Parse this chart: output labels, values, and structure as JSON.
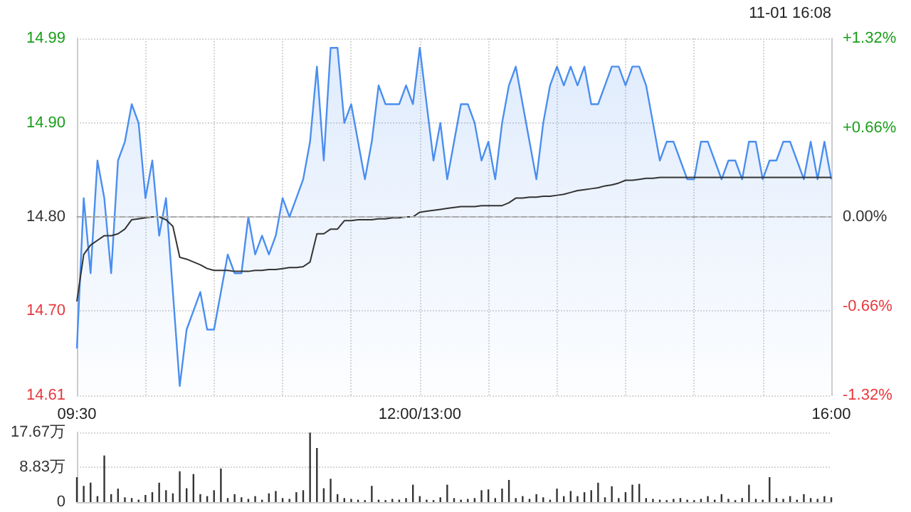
{
  "chart_data": [
    {
      "type": "area",
      "annotations": [
        "11-01 16:08"
      ],
      "categories": [
        "09:30",
        null,
        null,
        null,
        null,
        null,
        null,
        null,
        null,
        null,
        null,
        null,
        null,
        null,
        null,
        null,
        null,
        null,
        null,
        null,
        null,
        null,
        null,
        null,
        null,
        null,
        null,
        null,
        null,
        null,
        null,
        null,
        null,
        null,
        null,
        null,
        null,
        null,
        null,
        null,
        null,
        null,
        null,
        null,
        null,
        null,
        null,
        null,
        null,
        null,
        "12:00/13:00",
        null,
        null,
        null,
        null,
        null,
        null,
        null,
        null,
        null,
        null,
        null,
        null,
        null,
        null,
        null,
        null,
        null,
        null,
        null,
        null,
        null,
        null,
        null,
        null,
        null,
        null,
        null,
        null,
        null,
        null,
        null,
        null,
        null,
        null,
        null,
        null,
        null,
        null,
        null,
        null,
        null,
        null,
        null,
        null,
        null,
        null,
        null,
        null,
        null,
        null,
        null,
        null,
        null,
        null,
        null,
        null,
        null,
        null,
        null,
        "16:00"
      ],
      "ylim": [
        14.61,
        14.99
      ],
      "yticks": [
        {
          "value": 14.61,
          "label": "14.61"
        },
        {
          "value": 14.7,
          "label": "14.70"
        },
        {
          "value": 14.8,
          "label": "14.80"
        },
        {
          "value": 14.9,
          "label": "14.90"
        },
        {
          "value": 14.99,
          "label": "14.99"
        }
      ],
      "y2lim": [
        -1.32,
        1.32
      ],
      "y2ticks": [
        {
          "value": -1.32,
          "label": "-1.32%"
        },
        {
          "value": -0.66,
          "label": "-0.66%"
        },
        {
          "value": 0,
          "label": "0.00%"
        },
        {
          "value": 0.66,
          "label": "+0.66%"
        },
        {
          "value": 1.32,
          "label": "+1.32%"
        }
      ],
      "grid": true,
      "ref_lines": [
        {
          "axis": "y",
          "value": 14.8,
          "color": "#aaaaaa",
          "line_style": "dashed"
        }
      ],
      "series": [
        {
          "color": "#4a8ef0",
          "values": [
            14.66,
            14.82,
            14.74,
            14.86,
            14.82,
            14.74,
            14.86,
            14.88,
            14.92,
            14.9,
            14.82,
            14.86,
            14.78,
            14.82,
            14.72,
            14.62,
            14.68,
            14.7,
            14.72,
            14.68,
            14.68,
            14.72,
            14.76,
            14.74,
            14.74,
            14.8,
            14.76,
            14.78,
            14.76,
            14.78,
            14.82,
            14.8,
            14.82,
            14.84,
            14.88,
            14.96,
            14.86,
            14.98,
            14.98,
            14.9,
            14.92,
            14.88,
            14.84,
            14.88,
            14.94,
            14.92,
            14.92,
            14.92,
            14.94,
            14.92,
            14.98,
            14.92,
            14.86,
            14.9,
            14.84,
            14.88,
            14.92,
            14.92,
            14.9,
            14.86,
            14.88,
            14.84,
            14.9,
            14.94,
            14.96,
            14.92,
            14.88,
            14.84,
            14.9,
            14.94,
            14.96,
            14.94,
            14.96,
            14.94,
            14.96,
            14.92,
            14.92,
            14.94,
            14.96,
            14.96,
            14.94,
            14.96,
            14.96,
            14.94,
            14.9,
            14.86,
            14.88,
            14.88,
            14.86,
            14.84,
            14.84,
            14.88,
            14.88,
            14.86,
            14.84,
            14.86,
            14.86,
            14.84,
            14.88,
            14.88,
            14.84,
            14.86,
            14.86,
            14.88,
            14.88,
            14.86,
            14.84,
            14.88,
            14.84,
            14.88,
            14.84
          ]
        },
        {
          "type": "line",
          "color": "#333333",
          "values": [
            14.71,
            14.76,
            14.77,
            14.775,
            14.78,
            14.78,
            14.782,
            14.787,
            14.797,
            14.798,
            14.799,
            14.8,
            14.8,
            14.797,
            14.79,
            14.757,
            14.755,
            14.752,
            14.749,
            14.745,
            14.743,
            14.743,
            14.743,
            14.742,
            14.742,
            14.742,
            14.743,
            14.743,
            14.744,
            14.744,
            14.745,
            14.746,
            14.746,
            14.747,
            14.752,
            14.782,
            14.782,
            14.787,
            14.787,
            14.796,
            14.796,
            14.797,
            14.797,
            14.797,
            14.798,
            14.798,
            14.799,
            14.799,
            14.8,
            14.8,
            14.805,
            14.806,
            14.807,
            14.808,
            14.809,
            14.81,
            14.811,
            14.811,
            14.811,
            14.812,
            14.812,
            14.812,
            14.812,
            14.815,
            14.82,
            14.82,
            14.821,
            14.821,
            14.822,
            14.822,
            14.823,
            14.824,
            14.826,
            14.828,
            14.829,
            14.83,
            14.831,
            14.833,
            14.834,
            14.836,
            14.839,
            14.839,
            14.84,
            14.841,
            14.841,
            14.842,
            14.842,
            14.842,
            14.842,
            14.842,
            14.842,
            14.842,
            14.842,
            14.842,
            14.842,
            14.842,
            14.842,
            14.842,
            14.842,
            14.842,
            14.842,
            14.842,
            14.842,
            14.842,
            14.842,
            14.842,
            14.842,
            14.842,
            14.842,
            14.842,
            14.842
          ]
        }
      ]
    },
    {
      "type": "bar",
      "tick_labels": "y",
      "grid": "y",
      "categories": [
        null,
        null,
        null,
        null,
        null,
        null,
        null,
        null,
        null,
        null,
        null,
        null,
        null,
        null,
        null,
        null,
        null,
        null,
        null,
        null,
        null,
        null,
        null,
        null,
        null,
        null,
        null,
        null,
        null,
        null,
        null,
        null,
        null,
        null,
        null,
        null,
        null,
        null,
        null,
        null,
        null,
        null,
        null,
        null,
        null,
        null,
        null,
        null,
        null,
        null,
        null,
        null,
        null,
        null,
        null,
        null,
        null,
        null,
        null,
        null,
        null,
        null,
        null,
        null,
        null,
        null,
        null,
        null,
        null,
        null,
        null,
        null,
        null,
        null,
        null,
        null,
        null,
        null,
        null,
        null,
        null,
        null,
        null,
        null,
        null,
        null,
        null,
        null,
        null,
        null,
        null,
        null,
        null,
        null,
        null,
        null,
        null,
        null,
        null,
        null,
        null,
        null,
        null,
        null,
        null,
        null,
        null,
        null,
        null,
        null,
        null
      ],
      "ylim": [
        0,
        17.67
      ],
      "yticks": [
        {
          "value": 0,
          "label": "0"
        },
        {
          "value": 8.83,
          "label": "8.83万"
        },
        {
          "value": 17.67,
          "label": "17.67万"
        }
      ],
      "series": [
        {
          "color": "#333333",
          "values": [
            6.3,
            4.1,
            4.9,
            1.5,
            11.8,
            2.0,
            3.4,
            1.2,
            1.0,
            0.6,
            1.8,
            2.5,
            4.9,
            3.0,
            2.2,
            7.8,
            3.5,
            7.1,
            2.0,
            1.5,
            3.0,
            8.5,
            1.0,
            2.0,
            1.2,
            0.8,
            1.5,
            0.6,
            2.2,
            2.8,
            1.0,
            0.8,
            2.5,
            3.0,
            17.6,
            13.7,
            3.5,
            5.9,
            2.0,
            1.0,
            0.8,
            0.6,
            0.5,
            4.1,
            0.6,
            0.5,
            0.8,
            0.6,
            1.0,
            4.4,
            1.5,
            0.6,
            0.5,
            1.2,
            4.4,
            1.0,
            0.6,
            0.8,
            1.0,
            3.0,
            3.2,
            1.0,
            3.4,
            5.6,
            1.0,
            1.5,
            0.8,
            2.0,
            1.2,
            0.6,
            3.4,
            1.5,
            2.8,
            1.5,
            2.5,
            3.0,
            4.9,
            1.2,
            4.0,
            1.0,
            2.5,
            4.4,
            4.6,
            1.0,
            0.8,
            0.6,
            0.5,
            0.8,
            1.0,
            0.6,
            0.5,
            0.8,
            1.5,
            0.6,
            2.0,
            0.8,
            0.5,
            1.0,
            4.4,
            0.8,
            0.6,
            6.3,
            1.0,
            0.8,
            1.5,
            0.6,
            2.0,
            1.0,
            0.8,
            1.5,
            1.2
          ]
        }
      ]
    }
  ]
}
